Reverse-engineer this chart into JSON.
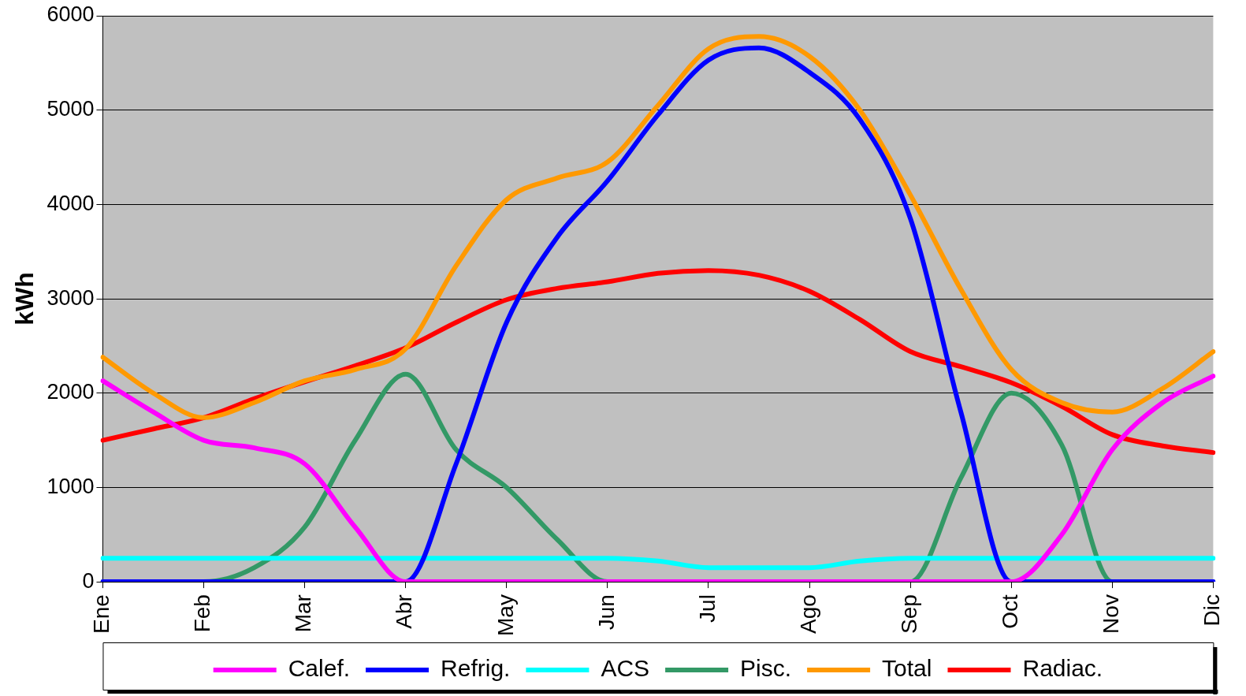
{
  "chart_data": {
    "type": "line",
    "ylabel": "kWh",
    "categories": [
      "Ene",
      null,
      "Feb",
      null,
      "Mar",
      null,
      "Abr",
      null,
      "May",
      null,
      "Jun",
      null,
      "Jul",
      null,
      "Ago",
      null,
      "Sep",
      null,
      "Oct",
      null,
      "Nov",
      null,
      "Dic"
    ],
    "ylim": [
      0,
      6000
    ],
    "yticks": [
      0,
      1000,
      2000,
      3000,
      4000,
      5000,
      6000
    ],
    "grid": "y",
    "legend": "bottom",
    "marker": "none",
    "line_style": "solid",
    "series": [
      {
        "name": "Calef.",
        "color": "#ff00ff",
        "values": [
          2130,
          1800,
          1500,
          1420,
          1250,
          580,
          0,
          0,
          0,
          0,
          0,
          0,
          0,
          0,
          0,
          0,
          0,
          0,
          0,
          500,
          1400,
          1900,
          2180
        ]
      },
      {
        "name": "Refrig.",
        "color": "#0000ff",
        "values": [
          0,
          0,
          0,
          0,
          0,
          0,
          0,
          1250,
          2750,
          3650,
          4250,
          4950,
          5530,
          5660,
          5400,
          4900,
          3850,
          1800,
          0,
          0,
          0,
          0,
          0
        ]
      },
      {
        "name": "ACS",
        "color": "#00ffff",
        "values": [
          250,
          250,
          250,
          250,
          250,
          250,
          250,
          250,
          250,
          250,
          250,
          220,
          150,
          150,
          150,
          220,
          250,
          250,
          250,
          250,
          250,
          250,
          250
        ]
      },
      {
        "name": "Pisc.",
        "color": "#339966",
        "values": [
          0,
          0,
          0,
          150,
          580,
          1500,
          2200,
          1400,
          1000,
          450,
          0,
          0,
          0,
          0,
          0,
          0,
          0,
          1100,
          2000,
          1450,
          0,
          0,
          0
        ]
      },
      {
        "name": "Total",
        "color": "#ff9900",
        "values": [
          2380,
          2000,
          1740,
          1900,
          2130,
          2250,
          2470,
          3350,
          4050,
          4280,
          4450,
          5050,
          5650,
          5780,
          5570,
          5000,
          4100,
          3100,
          2250,
          1900,
          1800,
          2050,
          2440
        ]
      },
      {
        "name": "Radiac.",
        "color": "#ff0000",
        "values": [
          1500,
          1620,
          1740,
          1940,
          2120,
          2290,
          2480,
          2750,
          2990,
          3110,
          3180,
          3270,
          3300,
          3250,
          3080,
          2780,
          2440,
          2280,
          2110,
          1860,
          1560,
          1440,
          1370
        ]
      }
    ]
  }
}
